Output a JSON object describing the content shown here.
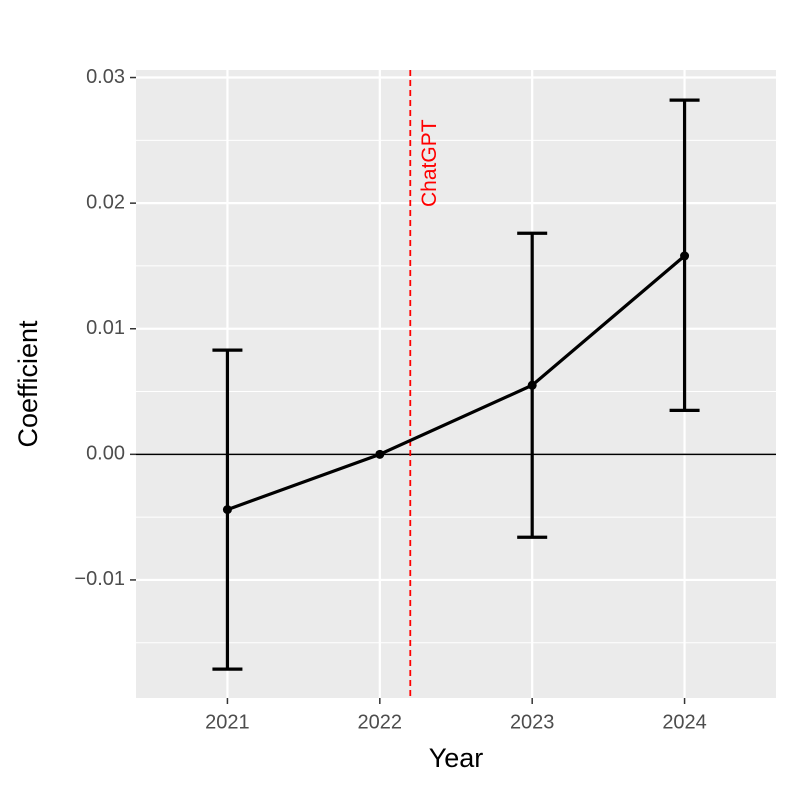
{
  "chart_data": {
    "type": "line",
    "x_label": "Year",
    "y_label": "Coefficient",
    "x": [
      2021,
      2022,
      2023,
      2024
    ],
    "series": [
      {
        "color": "#000000",
        "values": [
          -0.0044,
          0,
          0.0055,
          0.0158
        ],
        "upper": [
          0.0083,
          null,
          0.0176,
          0.0282
        ],
        "lower": [
          -0.0171,
          null,
          -0.0066,
          0.0035
        ]
      }
    ],
    "xlim": [
      2020.4,
      2024.6
    ],
    "xticks": [
      2021,
      2022,
      2023,
      2024
    ],
    "ylim": [
      -0.0194,
      0.0306
    ],
    "yticks": [
      {
        "value": -0.01,
        "label": "−0.01"
      },
      {
        "value": 0,
        "label": "0.00"
      },
      0.01,
      0.02,
      0.03
    ],
    "minor_yticks": [
      -0.015,
      -0.005,
      0.005,
      0.015,
      0.025
    ],
    "hline": 0,
    "vline": {
      "x": 2022.2,
      "label": "ChatGPT",
      "color": "#ff0000"
    },
    "grid": true
  }
}
